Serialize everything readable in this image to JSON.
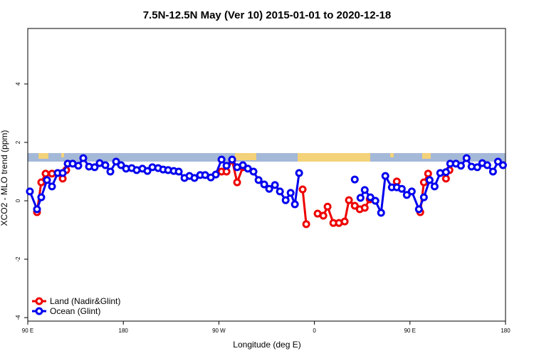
{
  "chart_data": {
    "type": "line",
    "title": "7.5N-12.5N May (Ver 10)   2015-01-01 to 2020-12-18",
    "x_label": "Longitude (deg E)",
    "y_label": "XCO2 - MLO trend (ppm)",
    "xlim": [
      90,
      540
    ],
    "ylim": [
      -4.12,
      5.9
    ],
    "xticks": [
      {
        "value": 90,
        "label": "90 E"
      },
      180,
      {
        "value": 270,
        "label": "90 W"
      },
      {
        "value": 360,
        "label": "0"
      },
      {
        "value": 450,
        "label": "90 E"
      },
      {
        "value": 540,
        "label": "180"
      }
    ],
    "yticks": [
      -4,
      -2,
      0,
      2,
      4
    ],
    "legend": "bottom-left",
    "series": [
      {
        "name": "Land (Nadir&Glint)",
        "color": "#ee0000",
        "x": [
          98.7,
          102.7,
          106.8,
          112.8,
          118.2,
          122.9,
          126.2,
          200,
          272.5,
          277.2,
          282.5,
          287.2,
          292.6,
          320,
          348.9,
          352.3,
          355,
          363.0,
          368.4,
          372.4,
          377.8,
          383.1,
          388.5,
          392.5,
          398.0,
          402.7,
          407.4,
          412.1,
          430,
          437.6,
          455,
          459.7,
          463.1,
          467.1,
          475,
          483.9,
          487.2
        ],
        "values": [
          -0.39,
          0.63,
          0.93,
          0.93,
          0.95,
          0.76,
          1.05,
          null,
          1.0,
          1.0,
          1.39,
          0.63,
          1.15,
          null,
          0.39,
          -0.8,
          null,
          -0.44,
          -0.51,
          -0.2,
          -0.76,
          -0.76,
          -0.71,
          0.02,
          -0.17,
          -0.29,
          -0.24,
          0.05,
          null,
          0.66,
          null,
          -0.39,
          0.63,
          0.93,
          null,
          0.76,
          1.05
        ]
      },
      {
        "name": "Ocean (Glint)",
        "color": "#0000ee",
        "x": [
          92.0,
          98.7,
          102.7,
          108.1,
          112.8,
          118.2,
          122.9,
          127.6,
          132.3,
          137.6,
          142.3,
          147.7,
          153.0,
          157.7,
          163.1,
          167.8,
          173.2,
          177.9,
          182.6,
          187.9,
          192.6,
          198.0,
          202.7,
          207.4,
          212.8,
          217.5,
          222.2,
          227.5,
          232.2,
          237.6,
          242.3,
          247.0,
          252.4,
          257.1,
          262.4,
          267.1,
          272.5,
          277.2,
          282.5,
          287.2,
          292.6,
          297.3,
          302.6,
          307.4,
          312.7,
          317.4,
          322.8,
          327.5,
          332.9,
          337.6,
          341.6,
          345.6,
          350,
          398.0,
          400,
          403.4,
          407.4,
          412.7,
          417.4,
          422.8,
          426.8,
          432.9,
          437.6,
          442.3,
          447.0,
          451.7,
          458.4,
          463.1,
          468.5,
          473.2,
          478.5,
          483.9,
          487.9,
          493.3,
          498.0,
          503.3,
          508.0,
          513.4,
          518.1,
          522.8,
          528.2,
          532.9,
          537.6
        ],
        "values": [
          0.32,
          -0.29,
          0.12,
          0.71,
          0.49,
          0.95,
          0.95,
          1.27,
          1.27,
          1.2,
          1.46,
          1.17,
          1.15,
          1.29,
          1.22,
          1.0,
          1.34,
          1.22,
          1.1,
          1.12,
          1.05,
          1.1,
          1.02,
          1.15,
          1.12,
          1.07,
          1.05,
          1.02,
          1.0,
          0.78,
          0.85,
          0.78,
          0.88,
          0.88,
          0.8,
          0.9,
          1.41,
          1.2,
          1.41,
          1.15,
          1.22,
          1.1,
          1.0,
          0.71,
          0.56,
          0.41,
          0.54,
          0.32,
          0.02,
          0.27,
          -0.12,
          0.95,
          null,
          0.73,
          null,
          0.1,
          0.37,
          0.12,
          0.0,
          -0.41,
          0.85,
          0.46,
          0.46,
          0.41,
          0.2,
          0.32,
          -0.29,
          0.12,
          0.71,
          0.49,
          0.95,
          0.98,
          1.27,
          1.27,
          1.2,
          1.46,
          1.17,
          1.15,
          1.29,
          1.22,
          1.0,
          1.34,
          1.22
        ]
      }
    ]
  }
}
